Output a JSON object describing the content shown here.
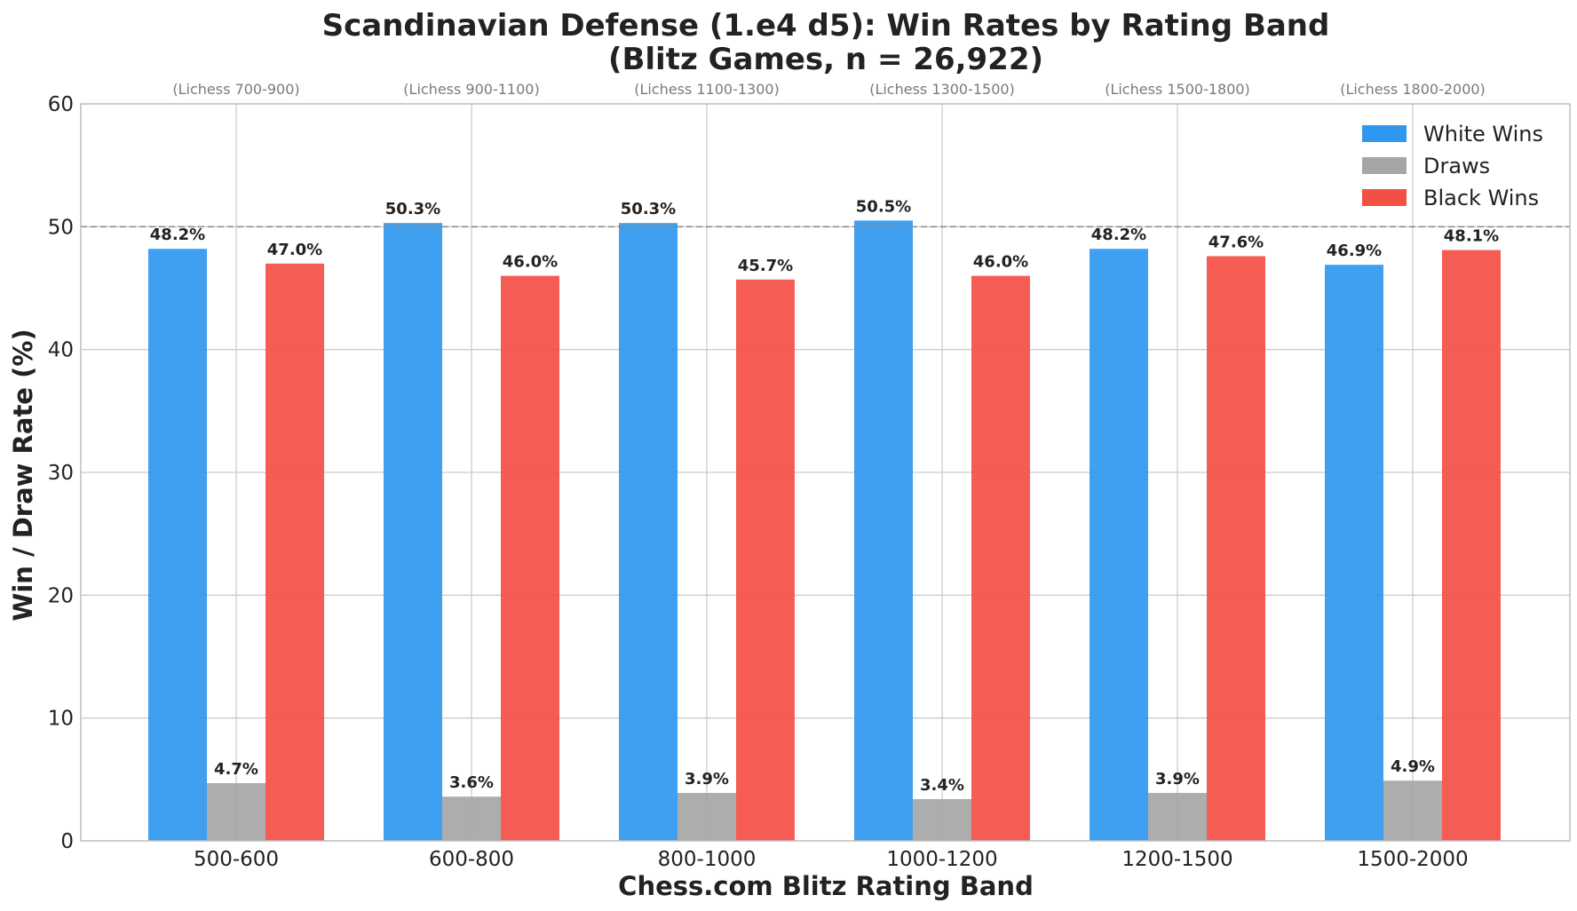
{
  "chart_data": {
    "type": "bar",
    "title": "Scandinavian Defense (1.e4 d5): Win Rates by Rating Band",
    "subtitle": "(Blitz Games, n = 26,922)",
    "xlabel": "Chess.com Blitz Rating Band",
    "ylabel": "Win / Draw Rate (%)",
    "categories": [
      "500-600",
      "600-800",
      "800-1000",
      "1000-1200",
      "1200-1500",
      "1500-2000"
    ],
    "secondary_categories": [
      "(Lichess 700-900)",
      "(Lichess 900-1100)",
      "(Lichess 1100-1300)",
      "(Lichess 1300-1500)",
      "(Lichess 1500-1800)",
      "(Lichess 1800-2000)"
    ],
    "series": [
      {
        "name": "White Wins",
        "color": "#2f97ef",
        "values": [
          48.2,
          50.3,
          50.3,
          50.5,
          48.2,
          46.9
        ]
      },
      {
        "name": "Draws",
        "color": "#a6a6a6",
        "values": [
          4.7,
          3.6,
          3.9,
          3.4,
          3.9,
          4.9
        ]
      },
      {
        "name": "Black Wins",
        "color": "#f44f45",
        "values": [
          47.0,
          46.0,
          45.7,
          46.0,
          47.6,
          48.1
        ]
      }
    ],
    "ylim": [
      0,
      60
    ],
    "yticks": [
      0,
      10,
      20,
      30,
      40,
      50,
      60
    ],
    "reference_line": 50,
    "grid": true,
    "legend_position": "top-right"
  }
}
